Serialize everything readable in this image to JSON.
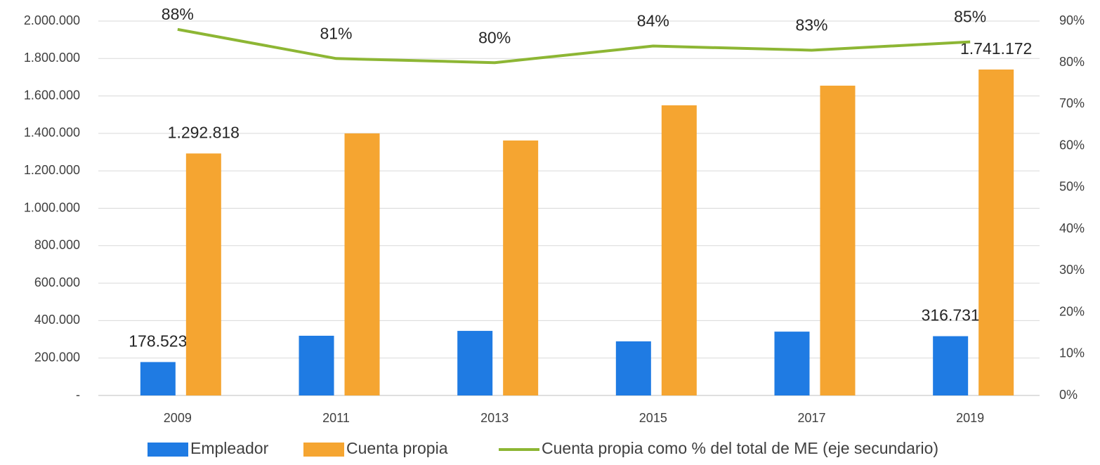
{
  "chart_data": {
    "type": "bar-line",
    "categories": [
      "2009",
      "2011",
      "2013",
      "2015",
      "2017",
      "2019"
    ],
    "series": [
      {
        "name": "Empleador",
        "color": "#1f7be3",
        "type": "bar",
        "values": [
          178523,
          319000,
          345000,
          289000,
          341000,
          316731
        ],
        "value_labels": [
          "178.523",
          null,
          null,
          null,
          null,
          "316.731"
        ]
      },
      {
        "name": "Cuenta propia",
        "color": "#f5a531",
        "type": "bar",
        "values": [
          1292818,
          1400000,
          1362000,
          1550000,
          1655000,
          1741172
        ],
        "value_labels": [
          "1.292.818",
          null,
          null,
          null,
          null,
          "1.741.172"
        ]
      },
      {
        "name": "Cuenta propia como % del total de ME (eje secundario)",
        "color": "#8db634",
        "type": "line",
        "axis": "y2",
        "values": [
          88,
          81,
          80,
          84,
          83,
          85
        ],
        "value_labels": [
          "88%",
          "81%",
          "80%",
          "84%",
          "83%",
          "85%"
        ]
      }
    ],
    "ylim": [
      0,
      2000000
    ],
    "yticks": [
      {
        "value": 0,
        "label": "-"
      },
      {
        "value": 200000,
        "label": "200.000"
      },
      {
        "value": 400000,
        "label": "400.000"
      },
      {
        "value": 600000,
        "label": "600.000"
      },
      {
        "value": 800000,
        "label": "800.000"
      },
      {
        "value": 1000000,
        "label": "1.000.000"
      },
      {
        "value": 1200000,
        "label": "1.200.000"
      },
      {
        "value": 1400000,
        "label": "1.400.000"
      },
      {
        "value": 1600000,
        "label": "1.600.000"
      },
      {
        "value": 1800000,
        "label": "1.800.000"
      },
      {
        "value": 2000000,
        "label": "2.000.000"
      }
    ],
    "y2lim": [
      0,
      90
    ],
    "y2ticks": [
      {
        "value": 0,
        "label": "0%"
      },
      {
        "value": 10,
        "label": "10%"
      },
      {
        "value": 20,
        "label": "20%"
      },
      {
        "value": 30,
        "label": "30%"
      },
      {
        "value": 40,
        "label": "40%"
      },
      {
        "value": 50,
        "label": "50%"
      },
      {
        "value": 60,
        "label": "60%"
      },
      {
        "value": 70,
        "label": "70%"
      },
      {
        "value": 80,
        "label": "80%"
      },
      {
        "value": 90,
        "label": "90%"
      }
    ],
    "grid": true,
    "legend": "bottom"
  }
}
